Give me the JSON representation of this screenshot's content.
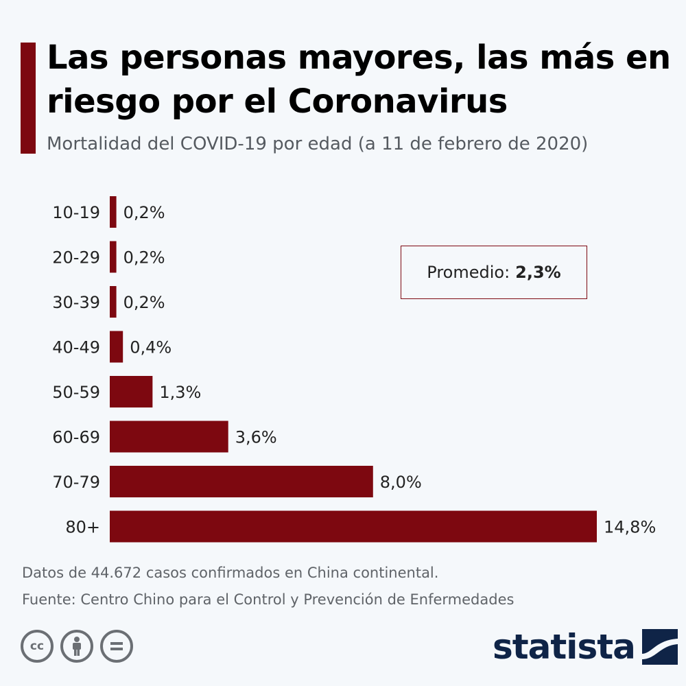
{
  "header": {
    "title": "Las personas mayores, las más en riesgo por el Coronavirus",
    "subtitle": "Mortalidad del COVID-19 por edad (a 11 de febrero de 2020)"
  },
  "colors": {
    "accent": "#7d0810",
    "bar": "#7d0810",
    "brand": "#0f2447",
    "muted": "#5f6368"
  },
  "chart_data": {
    "type": "bar",
    "orientation": "horizontal",
    "title": "Mortalidad del COVID-19 por edad (a 11 de febrero de 2020)",
    "categories": [
      "10-19",
      "20-29",
      "30-39",
      "40-49",
      "50-59",
      "60-69",
      "70-79",
      "80+"
    ],
    "values": [
      0.2,
      0.2,
      0.2,
      0.4,
      1.3,
      3.6,
      8.0,
      14.8
    ],
    "value_labels": [
      "0,2%",
      "0,2%",
      "0,2%",
      "0,4%",
      "1,3%",
      "3,6%",
      "8,0%",
      "14,8%"
    ],
    "xlim": [
      0,
      14.8
    ],
    "xlabel": "",
    "ylabel": "",
    "grid": false,
    "annotation": {
      "label": "Promedio:",
      "value": "2,3%"
    }
  },
  "footer": {
    "note": "Datos de 44.672 casos confirmados en China continental.",
    "source": "Fuente: Centro Chino para el Control y Prevención de Enfermedades",
    "license_icons": [
      "creative-commons-icon",
      "attribution-icon",
      "no-derivatives-icon"
    ],
    "brand": "statista"
  }
}
